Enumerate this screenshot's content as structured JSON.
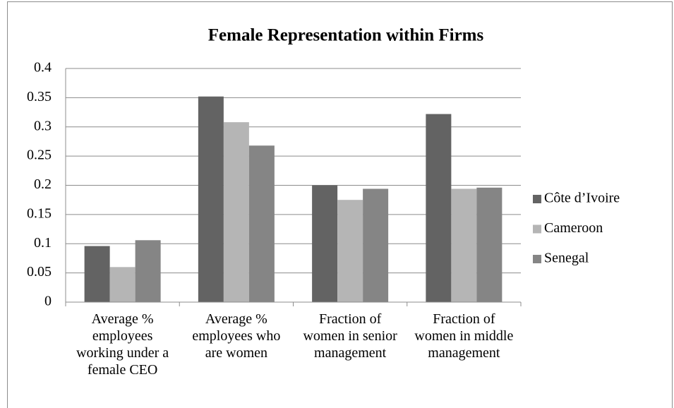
{
  "chart_data": {
    "type": "bar",
    "title": "Female Representation within Firms",
    "categories": [
      "Average % employees working under a female CEO",
      "Average % employees who are women",
      "Fraction of women in senior management",
      "Fraction of women in middle management"
    ],
    "series": [
      {
        "name": "Côte d’Ivoire",
        "color": "#636363",
        "values": [
          0.096,
          0.352,
          0.2,
          0.322
        ]
      },
      {
        "name": "Cameroon",
        "color": "#b5b5b5",
        "values": [
          0.06,
          0.308,
          0.175,
          0.194
        ]
      },
      {
        "name": "Senegal",
        "color": "#858585",
        "values": [
          0.106,
          0.268,
          0.194,
          0.196
        ]
      }
    ],
    "ylim": [
      0,
      0.4
    ],
    "yticks": [
      0,
      0.05,
      0.1,
      0.15,
      0.2,
      0.25,
      0.3,
      0.35,
      0.4
    ],
    "grid": true,
    "legend": "right"
  }
}
